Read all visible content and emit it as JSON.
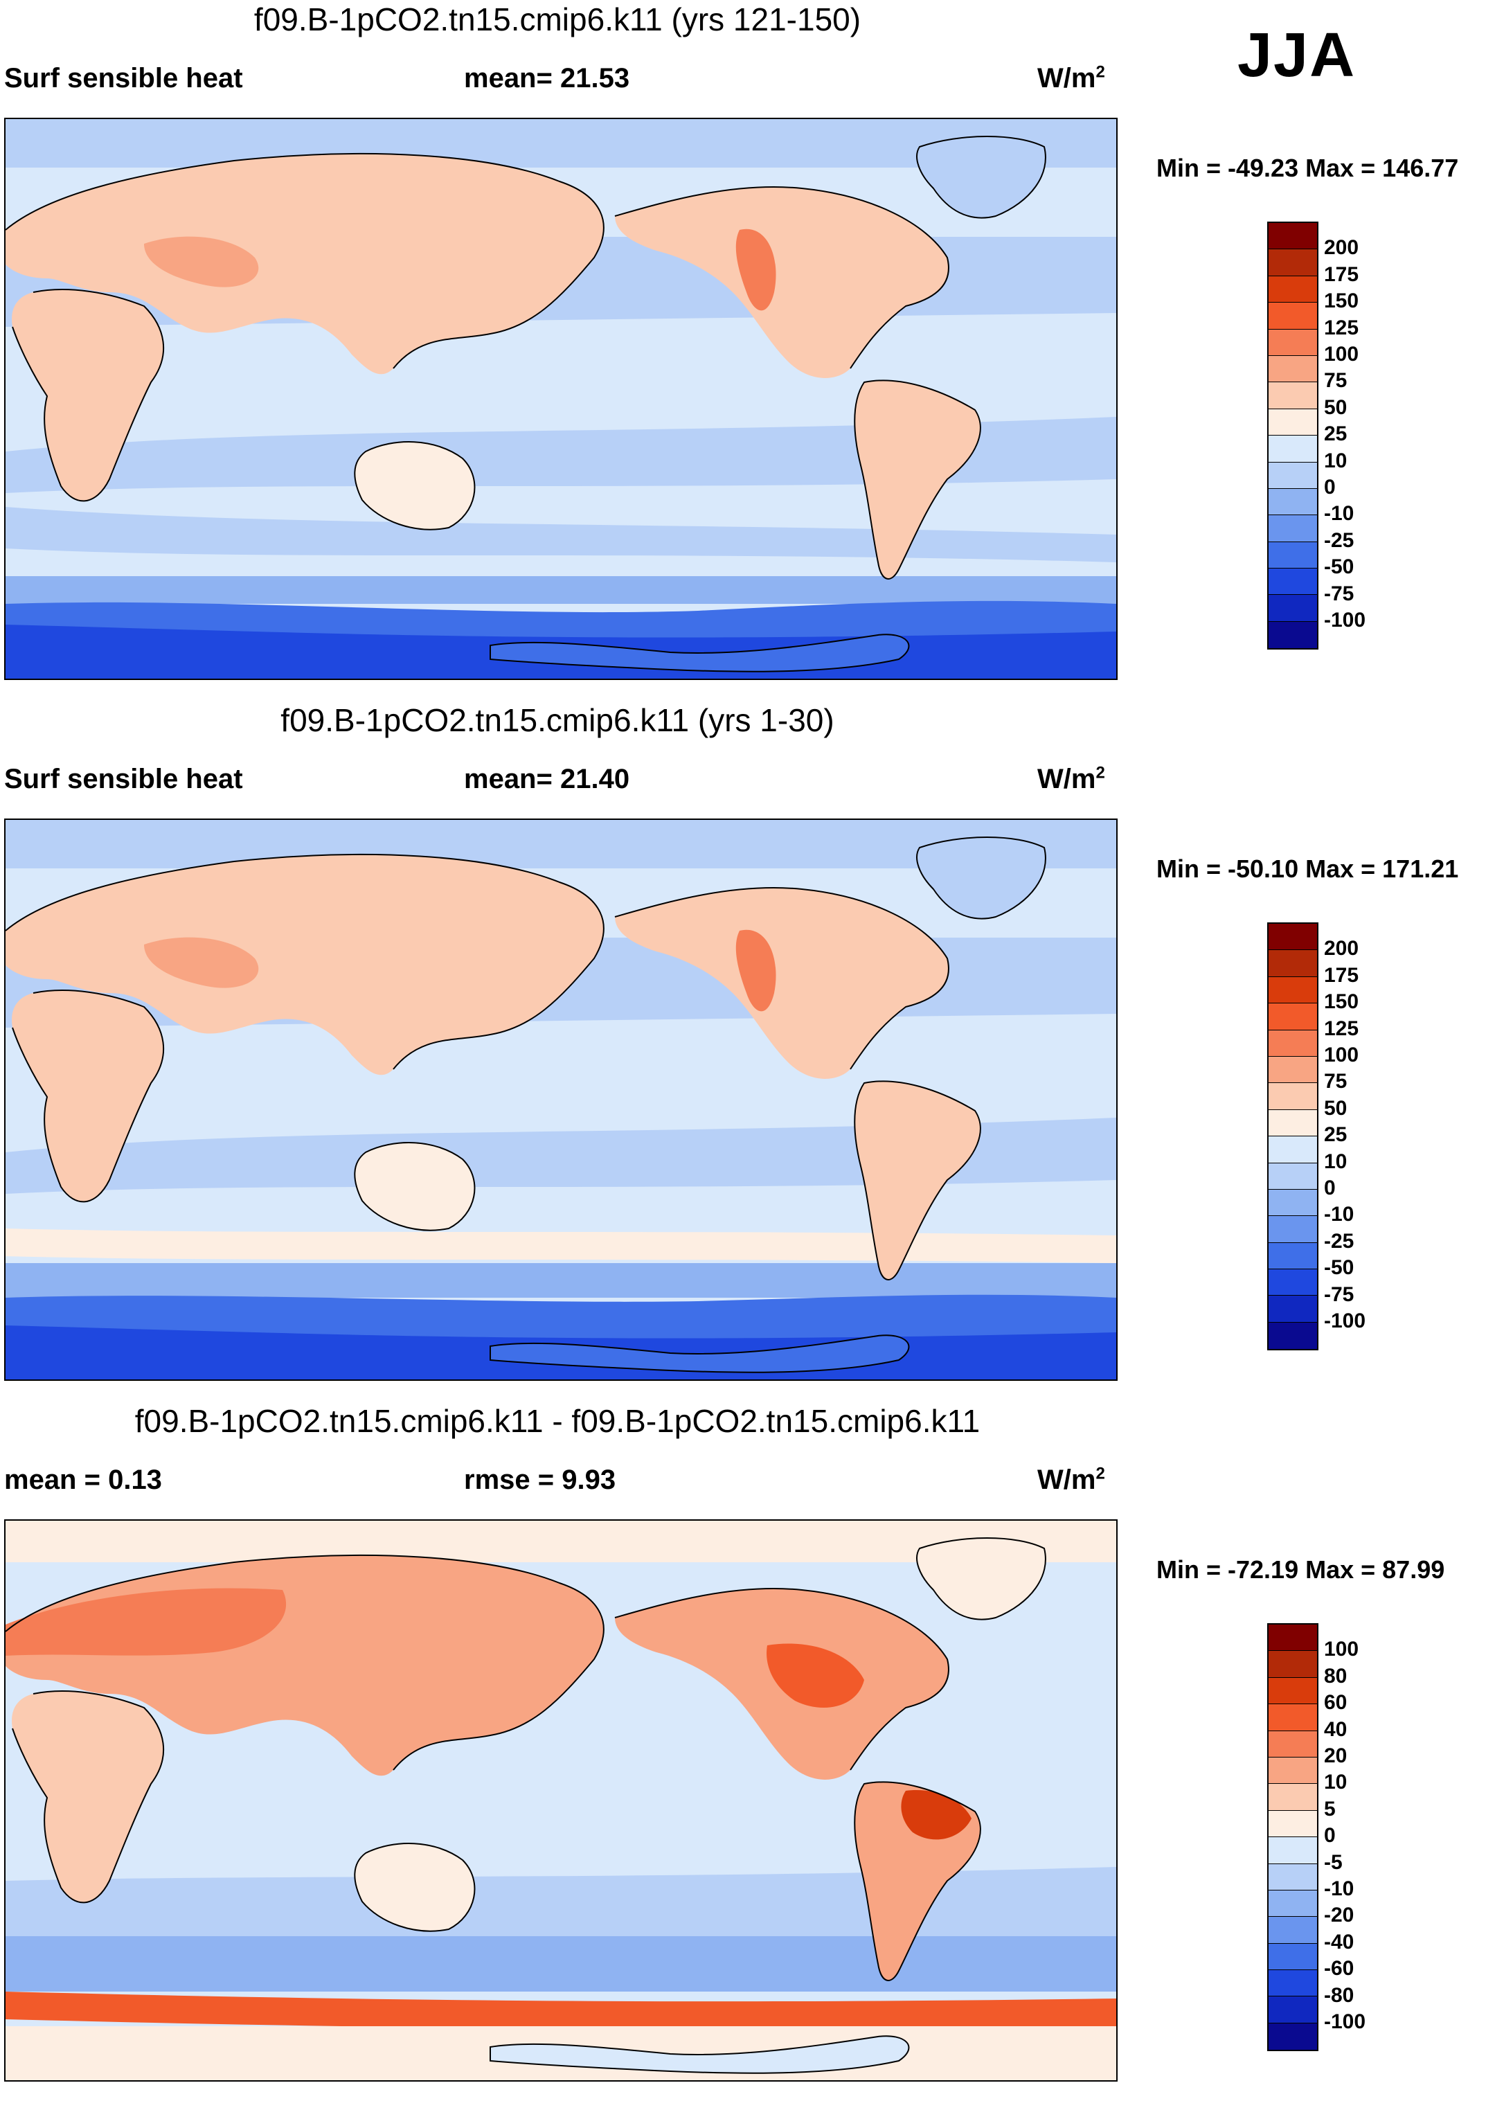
{
  "season": "JJA",
  "panels": [
    {
      "title": "f09.B-1pCO2.tn15.cmip6.k11 (yrs 121-150)",
      "left_label": "Surf sensible heat",
      "mid_label": "mean=  21.53",
      "unit": "W/m",
      "unit_sup": "2",
      "minmax": "Min = -49.23 Max = 146.77",
      "colorbar": {
        "labels": [
          "200",
          "175",
          "150",
          "125",
          "100",
          "75",
          "50",
          "25",
          "10",
          "0",
          "-10",
          "-25",
          "-50",
          "-75",
          "-100"
        ],
        "colors": [
          "#800000",
          "#b22a08",
          "#d93c0c",
          "#f25a2a",
          "#f57d55",
          "#f8a583",
          "#fbcbb1",
          "#fdeee2",
          "#d9e9fb",
          "#b7d0f7",
          "#8fb3f2",
          "#6a95ee",
          "#3f6fe8",
          "#1f48df",
          "#1028c0",
          "#0a0a90"
        ]
      }
    },
    {
      "title": "f09.B-1pCO2.tn15.cmip6.k11 (yrs 1-30)",
      "left_label": "Surf sensible heat",
      "mid_label": "mean=  21.40",
      "unit": "W/m",
      "unit_sup": "2",
      "minmax": "Min = -50.10 Max = 171.21",
      "colorbar": {
        "labels": [
          "200",
          "175",
          "150",
          "125",
          "100",
          "75",
          "50",
          "25",
          "10",
          "0",
          "-10",
          "-25",
          "-50",
          "-75",
          "-100"
        ],
        "colors": [
          "#800000",
          "#b22a08",
          "#d93c0c",
          "#f25a2a",
          "#f57d55",
          "#f8a583",
          "#fbcbb1",
          "#fdeee2",
          "#d9e9fb",
          "#b7d0f7",
          "#8fb3f2",
          "#6a95ee",
          "#3f6fe8",
          "#1f48df",
          "#1028c0",
          "#0a0a90"
        ]
      }
    },
    {
      "title": "f09.B-1pCO2.tn15.cmip6.k11 - f09.B-1pCO2.tn15.cmip6.k11",
      "left_label": "mean =   0.13",
      "mid_label": "rmse =   9.93",
      "unit": "W/m",
      "unit_sup": "2",
      "minmax": "Min = -72.19 Max =  87.99",
      "colorbar": {
        "labels": [
          "100",
          "80",
          "60",
          "40",
          "20",
          "10",
          "5",
          "0",
          "-5",
          "-10",
          "-20",
          "-40",
          "-60",
          "-80",
          "-100"
        ],
        "colors": [
          "#800000",
          "#b22a08",
          "#d93c0c",
          "#f25a2a",
          "#f57d55",
          "#f8a583",
          "#fbcbb1",
          "#fdeee2",
          "#d9e9fb",
          "#b7d0f7",
          "#8fb3f2",
          "#6a95ee",
          "#3f6fe8",
          "#1f48df",
          "#1028c0",
          "#0a0a90"
        ]
      }
    }
  ]
}
